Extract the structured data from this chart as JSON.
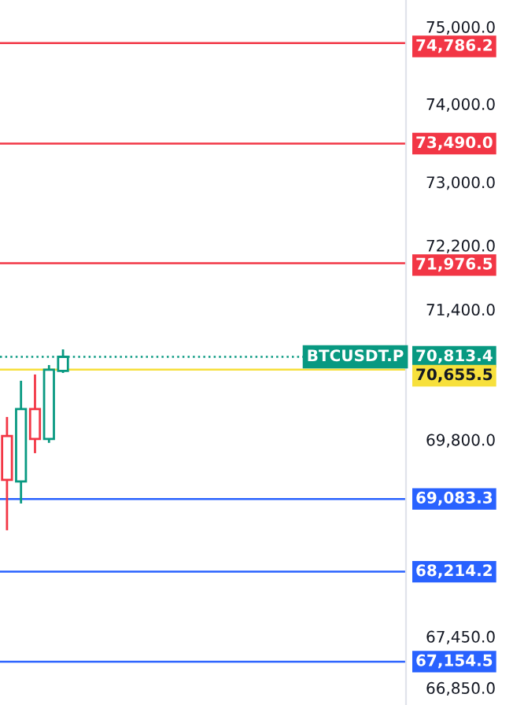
{
  "chart_data": {
    "type": "candlestick",
    "categories": [
      null,
      null,
      null,
      null,
      null,
      null,
      null,
      null,
      null,
      null,
      null,
      null,
      null,
      null,
      null,
      null,
      null,
      null,
      null,
      null,
      null,
      null,
      null,
      null,
      null,
      null,
      null,
      null,
      null
    ],
    "ohlc": [
      [
        69845,
        70076,
        68708,
        69313
      ],
      [
        69294,
        70519,
        69029,
        70172
      ],
      [
        70172,
        70596,
        69636,
        69809
      ],
      [
        69809,
        70712,
        69761,
        70655
      ],
      [
        70640,
        70905,
        70615,
        70813.4
      ],
      null,
      null,
      null,
      null,
      null,
      null,
      null,
      null,
      null,
      null,
      null,
      null,
      null,
      null,
      null,
      null,
      null,
      null,
      null,
      null,
      null,
      null,
      null,
      null
    ],
    "colors": [
      "#f23645",
      "#089981",
      "#f23645",
      "#089981",
      "#089981",
      null,
      null,
      null,
      null,
      null,
      null,
      null,
      null,
      null,
      null,
      null,
      null,
      null,
      null,
      null,
      null,
      null,
      null,
      null,
      null,
      null,
      null,
      null,
      null
    ],
    "log": true,
    "ylim": [
      66650,
      75350
    ],
    "yticks": [
      {
        "value": 75000,
        "label": "75,000.0"
      },
      {
        "value": 74000,
        "label": "74,000.0"
      },
      {
        "value": 73000,
        "label": "73,000.0"
      },
      {
        "value": 72200,
        "label": "72,200.0"
      },
      {
        "value": 71400,
        "label": "71,400.0"
      },
      {
        "value": 69800,
        "label": "69,800.0"
      },
      {
        "value": 67450,
        "label": "67,450.0"
      },
      {
        "value": 66850,
        "label": "66,850.0"
      }
    ],
    "ref_lines": [
      {
        "axis": "y",
        "value": 74786.2,
        "label": "74,786.2",
        "color": "#f23645",
        "line_style": "solid"
      },
      {
        "axis": "y",
        "value": 73490.0,
        "label": "73,490.0",
        "color": "#f23645",
        "line_style": "solid"
      },
      {
        "axis": "y",
        "value": 71976.5,
        "label": "71,976.5",
        "color": "#f23645",
        "line_style": "solid"
      },
      {
        "axis": "y",
        "value": 70813.4,
        "label": "70,813.4",
        "color": "#089981",
        "line_style": "dotted"
      },
      {
        "axis": "y",
        "value": 70655.5,
        "label": "70,655.5",
        "color": "#f7e03c",
        "line_style": "solid"
      },
      {
        "axis": "y",
        "value": 69083.3,
        "label": "69,083.3",
        "color": "#2962ff",
        "line_style": "solid"
      },
      {
        "axis": "y",
        "value": 68214.2,
        "label": "68,214.2",
        "color": "#2962ff",
        "line_style": "solid"
      },
      {
        "axis": "y",
        "value": 67154.5,
        "label": "67,154.5",
        "color": "#2962ff",
        "line_style": "solid"
      }
    ],
    "annotations": [
      {
        "text": "BTCUSDT.P",
        "y": 70813.4
      }
    ],
    "grid": false
  }
}
